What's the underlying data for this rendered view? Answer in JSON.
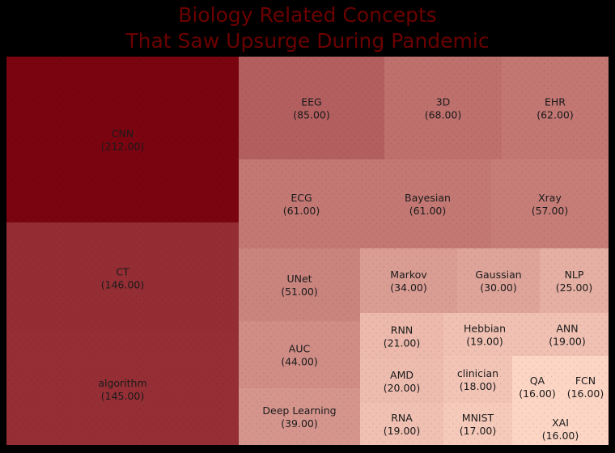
{
  "chart_data": {
    "type": "treemap",
    "title": [
      "Biology Related Concepts",
      "That Saw Upsurge During Pandemic"
    ],
    "value_format": "({v})",
    "color_scale": {
      "low": "#fdd5c4",
      "high": "#7a0410"
    },
    "items": [
      {
        "name": "CNN",
        "value": 212.0,
        "display": "212.00"
      },
      {
        "name": "CT",
        "value": 146.0,
        "display": "146.00"
      },
      {
        "name": "algorithm",
        "value": 145.0,
        "display": "145.00"
      },
      {
        "name": "EEG",
        "value": 85.0,
        "display": "85.00"
      },
      {
        "name": "3D",
        "value": 68.0,
        "display": "68.00"
      },
      {
        "name": "EHR",
        "value": 62.0,
        "display": "62.00"
      },
      {
        "name": "ECG",
        "value": 61.0,
        "display": "61.00"
      },
      {
        "name": "Bayesian",
        "value": 61.0,
        "display": "61.00"
      },
      {
        "name": "Xray",
        "value": 57.0,
        "display": "57.00"
      },
      {
        "name": "UNet",
        "value": 51.0,
        "display": "51.00"
      },
      {
        "name": "AUC",
        "value": 44.0,
        "display": "44.00"
      },
      {
        "name": "Deep Learning",
        "value": 39.0,
        "display": "39.00"
      },
      {
        "name": "Markov",
        "value": 34.0,
        "display": "34.00"
      },
      {
        "name": "Gaussian",
        "value": 30.0,
        "display": "30.00"
      },
      {
        "name": "NLP",
        "value": 25.0,
        "display": "25.00"
      },
      {
        "name": "RNN",
        "value": 21.0,
        "display": "21.00"
      },
      {
        "name": "AMD",
        "value": 20.0,
        "display": "20.00"
      },
      {
        "name": "RNA",
        "value": 19.0,
        "display": "19.00"
      },
      {
        "name": "Hebbian",
        "value": 19.0,
        "display": "19.00"
      },
      {
        "name": "ANN",
        "value": 19.0,
        "display": "19.00"
      },
      {
        "name": "clinician",
        "value": 18.0,
        "display": "18.00"
      },
      {
        "name": "MNIST",
        "value": 17.0,
        "display": "17.00"
      },
      {
        "name": "QA",
        "value": 16.0,
        "display": "16.00"
      },
      {
        "name": "FCN",
        "value": 16.0,
        "display": "16.00"
      },
      {
        "name": "XAI",
        "value": 16.0,
        "display": "16.00"
      }
    ]
  }
}
